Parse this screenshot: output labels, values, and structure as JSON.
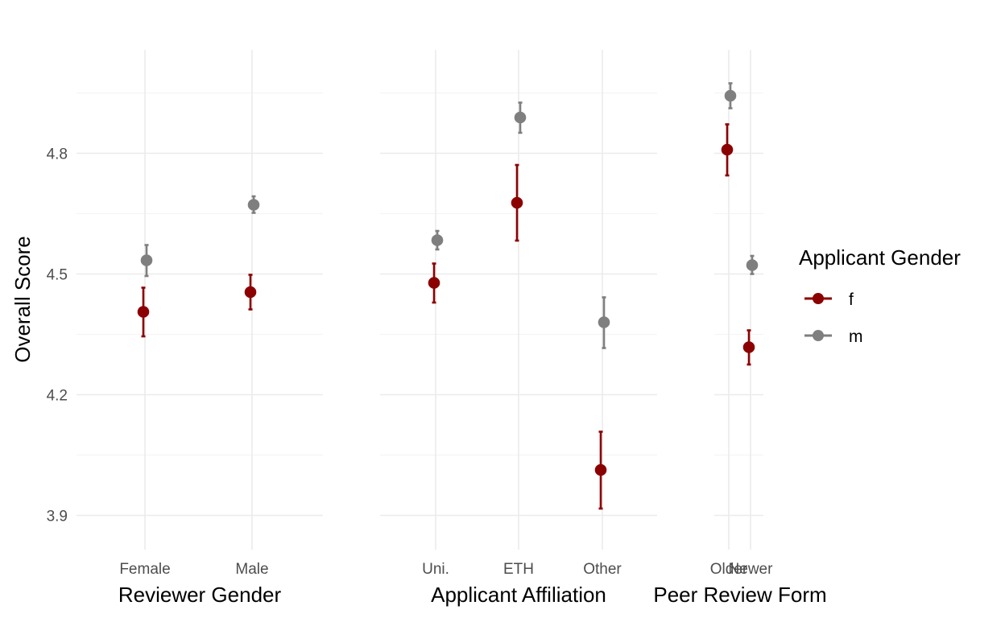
{
  "chart_data": {
    "type": "scatter",
    "ylabel": "Overall Score",
    "ylim": [
      3.83,
      5.03
    ],
    "yticks": [
      "3.9",
      "4.2",
      "4.5",
      "4.8"
    ],
    "grid": true,
    "legend": {
      "title": "Applicant Gender",
      "position": "right",
      "entries": [
        {
          "name": "f",
          "color": "#8b0000"
        },
        {
          "name": "m",
          "color": "#7f7f7f"
        }
      ]
    },
    "panels": [
      {
        "xlabel": "Reviewer Gender",
        "categories": [
          "Female",
          "Male"
        ],
        "series": [
          {
            "name": "f",
            "values": [
              4.406,
              4.455
            ],
            "lower": [
              4.345,
              4.412
            ],
            "upper": [
              4.466,
              4.498
            ]
          },
          {
            "name": "m",
            "values": [
              4.534,
              4.672
            ],
            "lower": [
              4.495,
              4.652
            ],
            "upper": [
              4.572,
              4.693
            ]
          }
        ]
      },
      {
        "xlabel": "Applicant Affiliation",
        "categories": [
          "Uni.",
          "ETH",
          "Other"
        ],
        "series": [
          {
            "name": "f",
            "values": [
              4.478,
              4.677,
              4.013
            ],
            "lower": [
              4.429,
              4.583,
              3.917
            ],
            "upper": [
              4.526,
              4.771,
              4.108
            ]
          },
          {
            "name": "m",
            "values": [
              4.584,
              4.889,
              4.38
            ],
            "lower": [
              4.561,
              4.851,
              4.316
            ],
            "upper": [
              4.607,
              4.926,
              4.442
            ]
          }
        ]
      },
      {
        "xlabel": "Peer Review Form",
        "categories": [
          "Older",
          "Newer"
        ],
        "series": [
          {
            "name": "f",
            "values": [
              4.809,
              4.318
            ],
            "lower": [
              4.745,
              4.275
            ],
            "upper": [
              4.872,
              4.36
            ]
          },
          {
            "name": "m",
            "values": [
              4.943,
              4.522
            ],
            "lower": [
              4.912,
              4.5
            ],
            "upper": [
              4.974,
              4.545
            ]
          }
        ]
      }
    ]
  }
}
